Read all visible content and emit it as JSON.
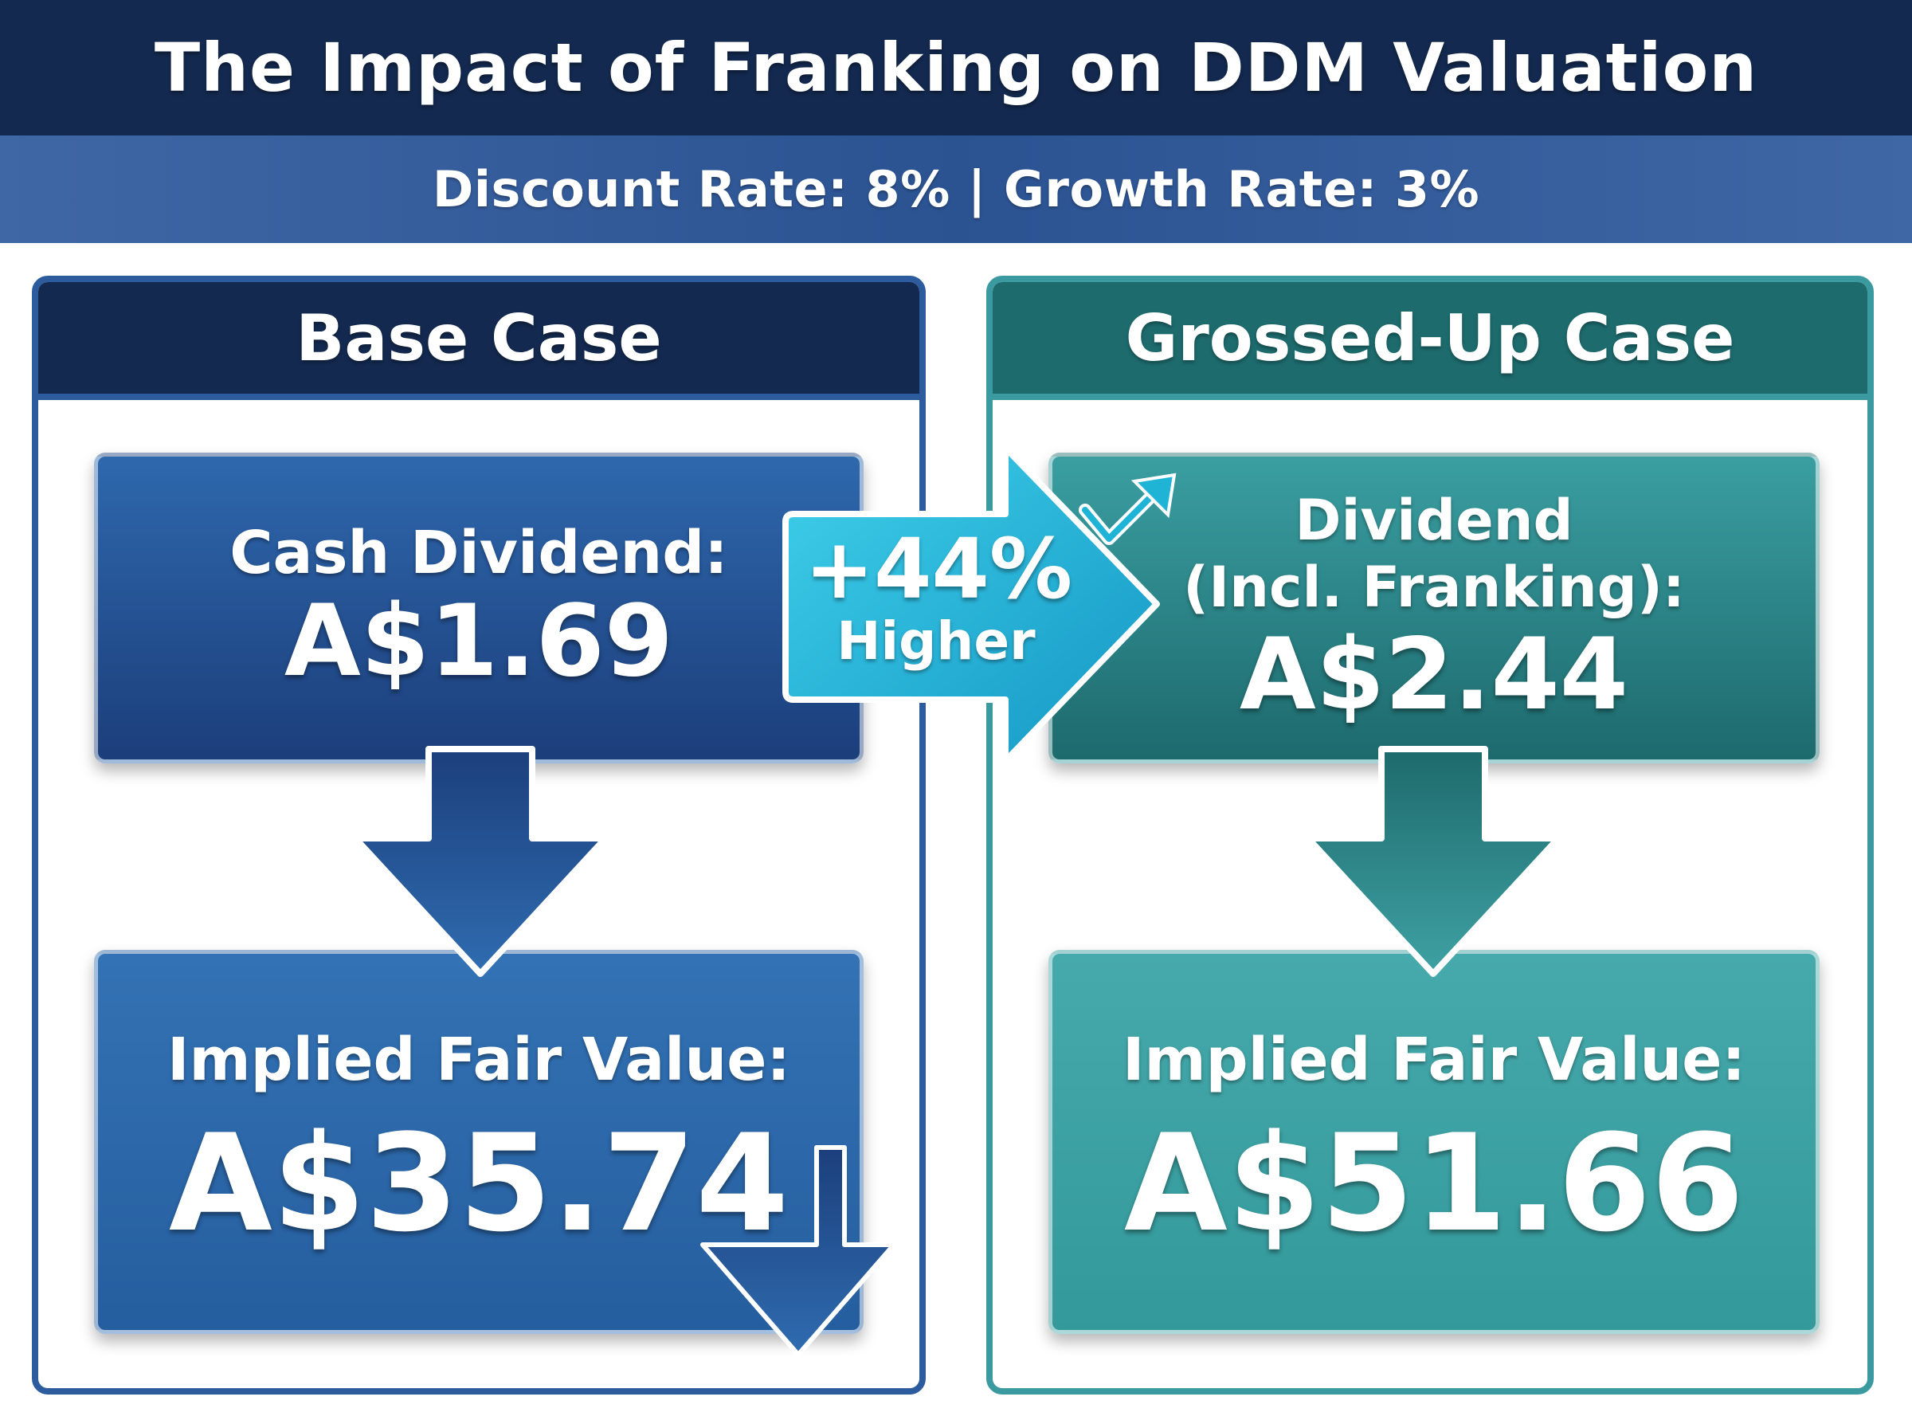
{
  "title": "The Impact of Franking on DDM Valuation",
  "subtitle": "Discount Rate: 8% | Growth Rate: 3%",
  "base_case": {
    "header": "Base Case",
    "dividend_label": "Cash Dividend:",
    "dividend_value": "A$1.69",
    "fair_value_label": "Implied Fair Value:",
    "fair_value": "A$35.74"
  },
  "grossed_up_case": {
    "header": "Grossed-Up Case",
    "dividend_label_line1": "Dividend",
    "dividend_label_line2": "(Incl. Franking):",
    "dividend_value": "A$2.44",
    "fair_value_label": "Implied Fair Value:",
    "fair_value": "A$51.66"
  },
  "comparison": {
    "percent": "+44%",
    "caption": "Higher"
  },
  "colors": {
    "navy": "#13294f",
    "base_blue": "#2c5b9e",
    "teal_dark": "#1d6b6d",
    "teal": "#3a9aa0",
    "cyan_arrow": "#1fb4d6"
  },
  "icons": [
    "down-arrow-icon",
    "right-arrow-icon",
    "trend-up-icon"
  ]
}
